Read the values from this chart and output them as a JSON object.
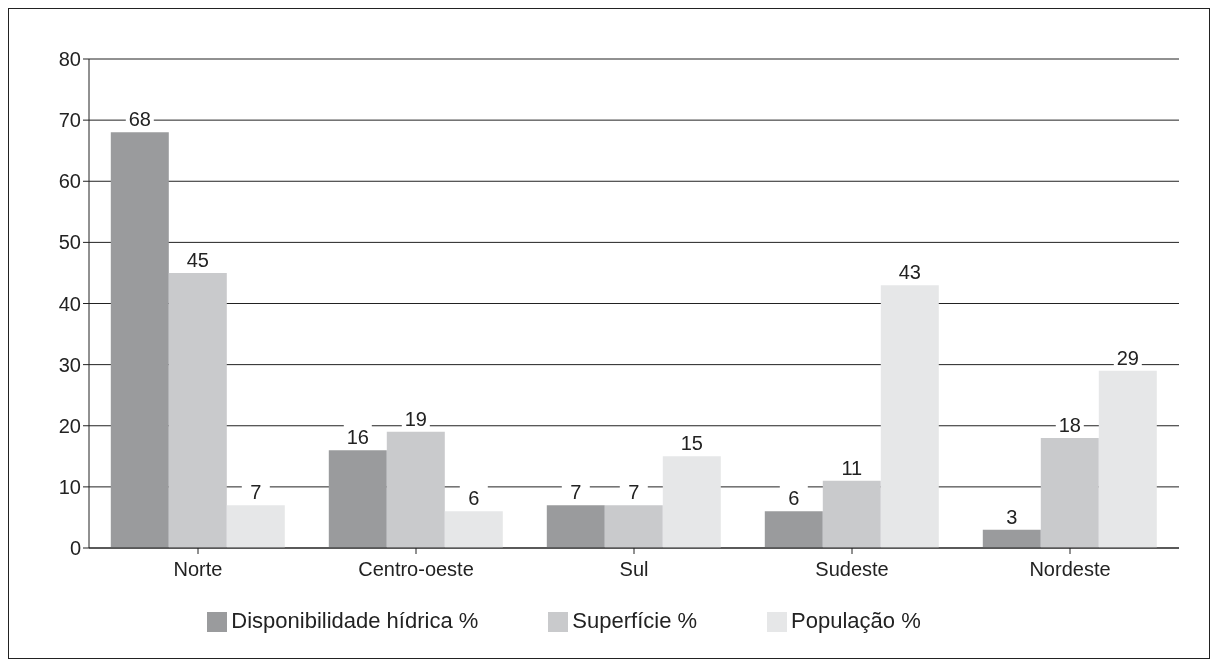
{
  "chart_data": {
    "type": "bar",
    "categories": [
      "Norte",
      "Centro-oeste",
      "Sul",
      "Sudeste",
      "Nordeste"
    ],
    "series": [
      {
        "name": "Disponibilidade hídrica %",
        "color": "#9a9b9d",
        "values": [
          68,
          16,
          7,
          6,
          3
        ]
      },
      {
        "name": "Superfície %",
        "color": "#c9cacc",
        "values": [
          45,
          19,
          7,
          11,
          18
        ]
      },
      {
        "name": "População %",
        "color": "#e6e7e8",
        "values": [
          7,
          6,
          15,
          43,
          29
        ]
      }
    ],
    "ylim": [
      0,
      80
    ],
    "yticks": [
      0,
      10,
      20,
      30,
      40,
      50,
      60,
      70,
      80
    ],
    "grid": "y",
    "legend": "bottom",
    "data_labels": true
  }
}
